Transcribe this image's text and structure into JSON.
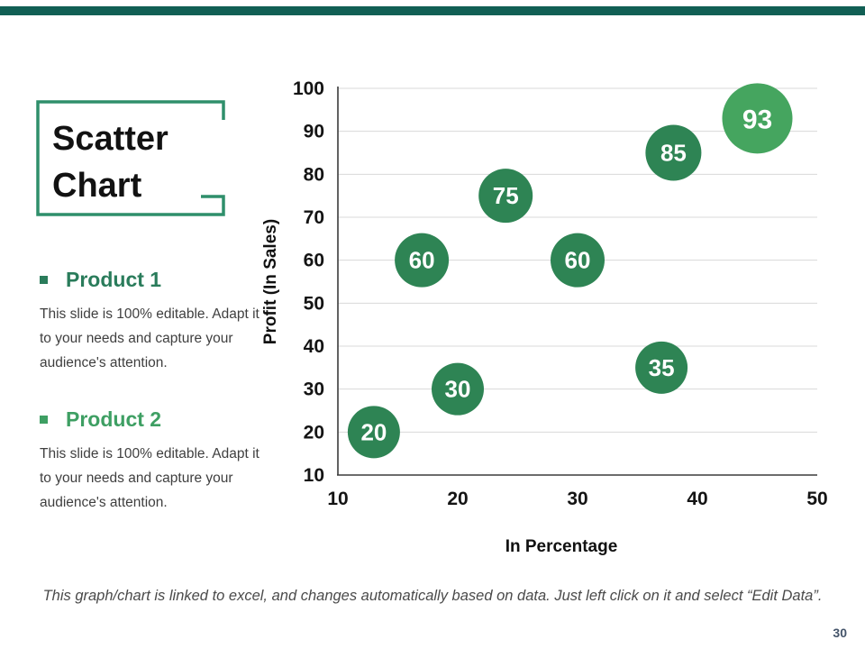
{
  "slide": {
    "accent_bar_color": "#115F54",
    "page_number": "30",
    "footer_note": "This graph/chart is linked to excel, and changes automatically based on data. Just left click on it and select “Edit Data”."
  },
  "title": {
    "line1": "Scatter",
    "line2": "Chart",
    "frame_color": "#2F8F6B"
  },
  "products": [
    {
      "name": "Product 1",
      "color": "#2A7C5B",
      "description": "This slide is 100% editable. Adapt it to your needs and capture your audience's attention."
    },
    {
      "name": "Product 2",
      "color": "#3E9F63",
      "description": "This slide is 100% editable. Adapt it to your needs and capture your audience's attention."
    }
  ],
  "chart_data": {
    "type": "scatter",
    "title": "",
    "xlabel": "In Percentage",
    "ylabel": "Profit (In Sales)",
    "xlim": [
      10,
      50
    ],
    "ylim": [
      10,
      100
    ],
    "x_ticks": [
      10,
      20,
      30,
      40,
      50
    ],
    "y_ticks": [
      10,
      20,
      30,
      40,
      50,
      60,
      70,
      80,
      90,
      100
    ],
    "grid": "horizontal",
    "legend": "none",
    "colors": {
      "axis": "#3B3B3B",
      "grid": "#D8D8D8",
      "label_text": "#FFFFFF"
    },
    "points": [
      {
        "x": 13,
        "y": 20,
        "label": "20",
        "color": "#2E8454",
        "r": 29
      },
      {
        "x": 17,
        "y": 60,
        "label": "60",
        "color": "#2E8454",
        "r": 30
      },
      {
        "x": 20,
        "y": 30,
        "label": "30",
        "color": "#2E8454",
        "r": 29
      },
      {
        "x": 24,
        "y": 75,
        "label": "75",
        "color": "#2E8454",
        "r": 30
      },
      {
        "x": 30,
        "y": 60,
        "label": "60",
        "color": "#2E8454",
        "r": 30
      },
      {
        "x": 37,
        "y": 35,
        "label": "35",
        "color": "#2E8454",
        "r": 29
      },
      {
        "x": 38,
        "y": 85,
        "label": "85",
        "color": "#2E8454",
        "r": 31
      },
      {
        "x": 45,
        "y": 93,
        "label": "93",
        "color": "#45A55F",
        "r": 39
      }
    ]
  }
}
